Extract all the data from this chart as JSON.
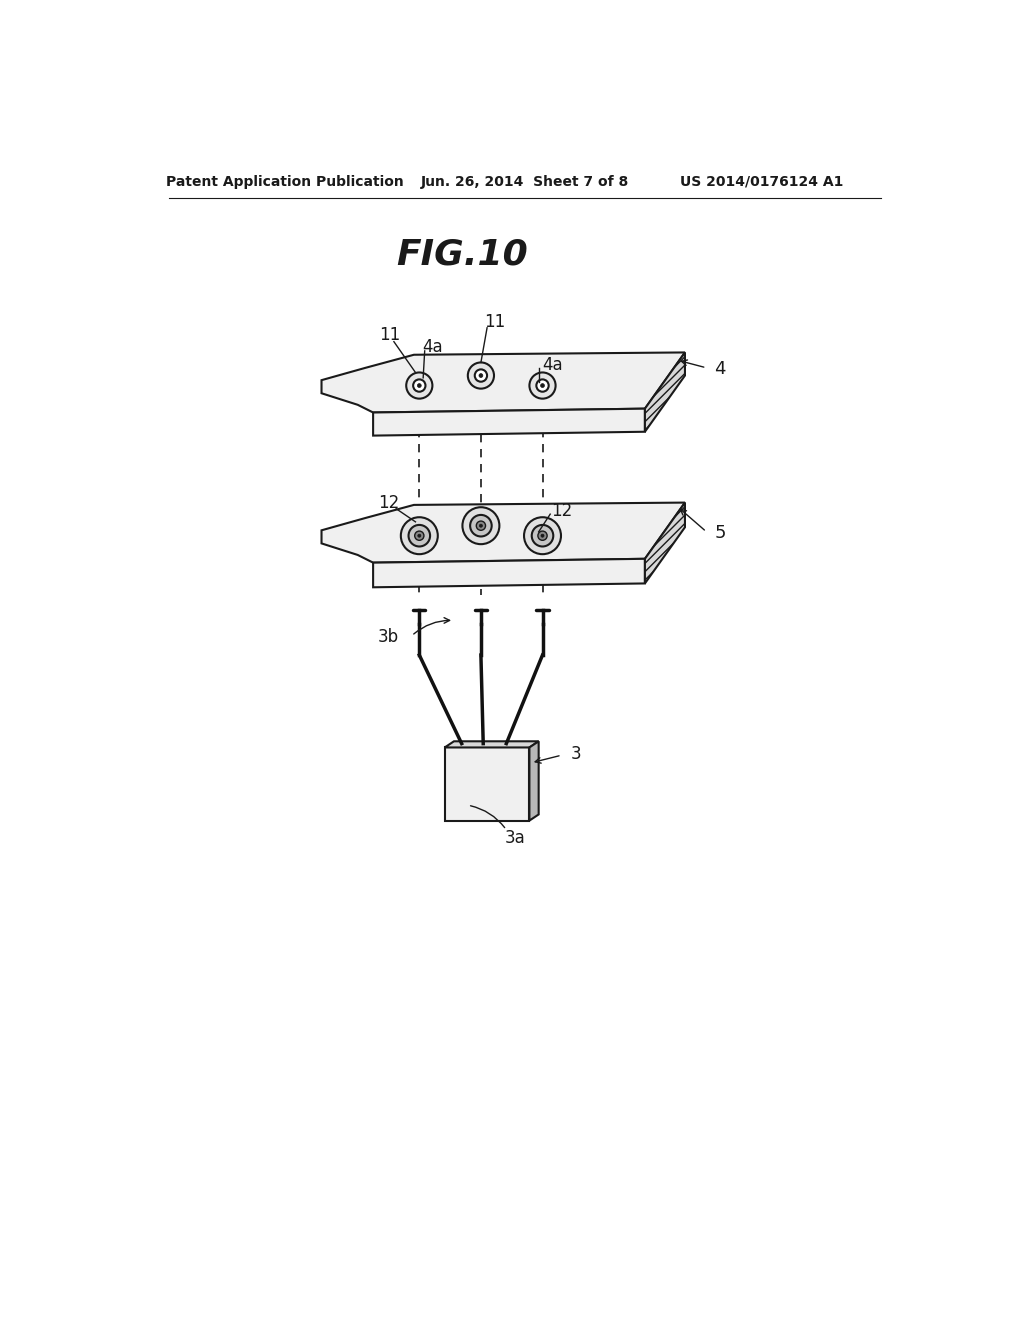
{
  "title": "FIG.10",
  "header_left": "Patent Application Publication",
  "header_center": "Jun. 26, 2014  Sheet 7 of 8",
  "header_right": "US 2014/0176124 A1",
  "bg_color": "#ffffff",
  "line_color": "#1a1a1a",
  "gray_light": "#f0f0f0",
  "gray_mid": "#d8d8d8",
  "gray_dark": "#b8b8b8"
}
